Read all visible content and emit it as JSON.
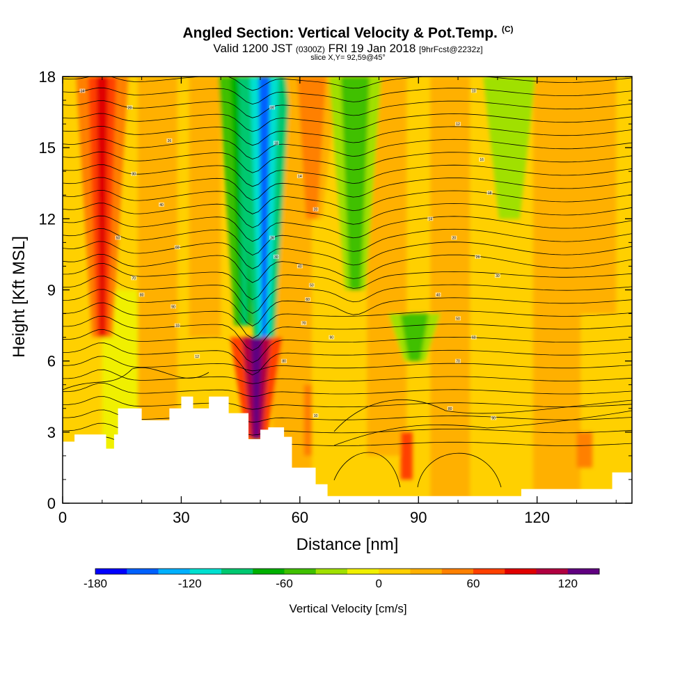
{
  "title": {
    "main": "Angled Section: Vertical Velocity & Pot.Temp.",
    "main_suffix": "(C)",
    "sub_a": "Valid 1200 JST",
    "sub_b": "(0300Z)",
    "sub_c": "FRI 19 Jan 2018",
    "sub_d": "[9hrFcst@2232z]",
    "slice": "slice X,Y= 92,59@45°"
  },
  "chart_data": {
    "type": "heatmap",
    "xlabel": "Distance [nm]",
    "ylabel": "Height [Kft MSL]",
    "xlim": [
      0,
      144
    ],
    "ylim": [
      0,
      18
    ],
    "x_ticks": [
      "0",
      "30",
      "60",
      "90",
      "120"
    ],
    "x_tick_values": [
      0,
      30,
      60,
      90,
      120
    ],
    "y_ticks": [
      "0",
      "3",
      "6",
      "9",
      "12",
      "15",
      "18"
    ],
    "y_tick_values": [
      0,
      3,
      6,
      9,
      12,
      15,
      18
    ],
    "colorbar": {
      "title": "Vertical Velocity [cm/s]",
      "range": [
        -180,
        140
      ],
      "labels": [
        "-180",
        "-120",
        "-60",
        "0",
        "60",
        "120"
      ],
      "label_values": [
        -180,
        -120,
        -60,
        0,
        60,
        120
      ],
      "colors": [
        "#0000ff",
        "#0060ff",
        "#00b0ff",
        "#00e0d0",
        "#00c870",
        "#00b000",
        "#40c000",
        "#a0e000",
        "#f0f000",
        "#ffd000",
        "#ffb000",
        "#ff8000",
        "#ff4000",
        "#e00000",
        "#b00040",
        "#600080"
      ]
    },
    "vertical_velocity_features": [
      {
        "x": 10,
        "z_from": 7,
        "z_to": 18,
        "w": 80
      },
      {
        "x": 46,
        "z_from": 7.5,
        "z_to": 18,
        "w": -90
      },
      {
        "x": 51,
        "z_from": 7,
        "z_to": 18,
        "w": -150
      },
      {
        "x": 49,
        "z_from": 2.7,
        "z_to": 7,
        "w": 130
      },
      {
        "x": 63,
        "z_from": 12,
        "z_to": 18,
        "w": 50
      },
      {
        "x": 74,
        "z_from": 9,
        "z_to": 18,
        "w": -60
      },
      {
        "x": 89,
        "z_from": 6,
        "z_to": 8,
        "w": -60
      },
      {
        "x": 113,
        "z_from": 12,
        "z_to": 18,
        "w": -40
      }
    ],
    "terrain": [
      [
        0,
        2.6
      ],
      [
        3,
        2.9
      ],
      [
        10,
        2.9
      ],
      [
        11,
        2.3
      ],
      [
        13,
        2.9
      ],
      [
        14,
        4.0
      ],
      [
        17,
        4.0
      ],
      [
        20,
        3.5
      ],
      [
        24,
        3.5
      ],
      [
        27,
        4.0
      ],
      [
        30,
        4.5
      ],
      [
        33,
        4.0
      ],
      [
        37,
        4.5
      ],
      [
        42,
        3.8
      ],
      [
        47,
        2.7
      ],
      [
        50,
        3.1
      ],
      [
        52,
        3.2
      ],
      [
        56,
        2.8
      ],
      [
        58,
        1.5
      ],
      [
        62,
        1.5
      ],
      [
        64,
        0.8
      ],
      [
        67,
        0.3
      ],
      [
        113,
        0.3
      ],
      [
        116,
        0.6
      ],
      [
        128,
        0.6
      ],
      [
        139,
        1.3
      ],
      [
        144,
        1.3
      ]
    ],
    "isentrope_labels": [
      "14",
      "20",
      "26",
      "30",
      "40",
      "50",
      "60",
      "70",
      "80",
      "90",
      "10",
      "12",
      "16",
      "18"
    ]
  }
}
